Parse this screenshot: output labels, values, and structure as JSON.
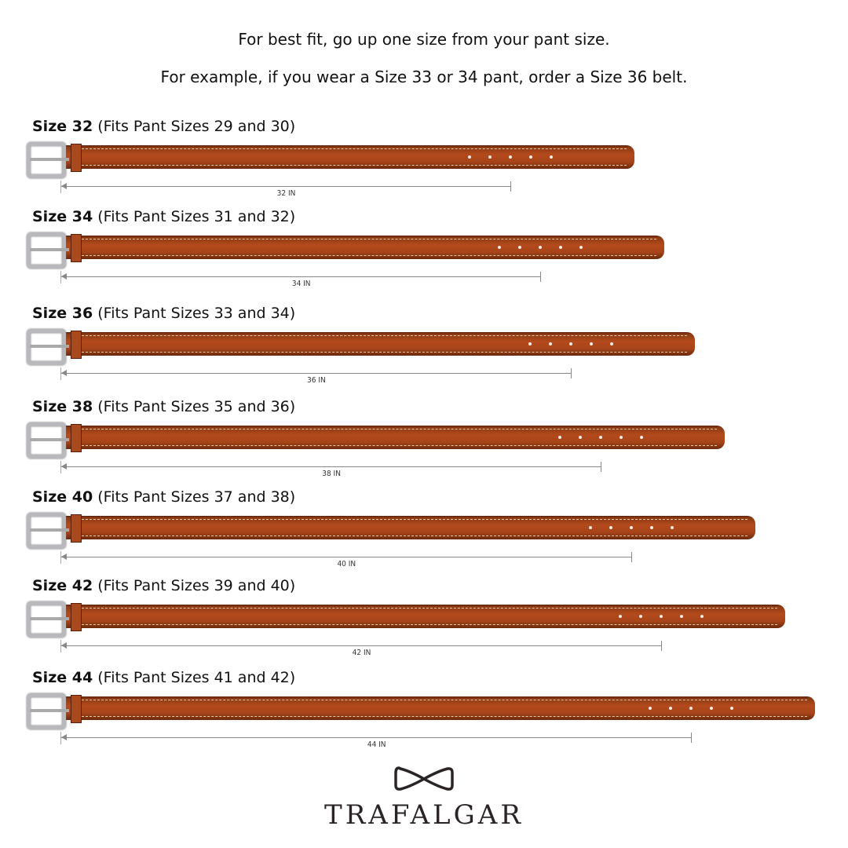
{
  "intro": {
    "line1": "For best fit, go up one size from your pant size.",
    "line2": "For example, if you wear a Size 33 or 34 pant, order a Size 36 belt."
  },
  "belts": [
    {
      "size_label": "Size 32",
      "fits": "(Fits Pant Sizes 29 and 30)",
      "measure_label": "32 IN",
      "length_in": 32
    },
    {
      "size_label": "Size 34",
      "fits": "(Fits Pant Sizes 31 and 32)",
      "measure_label": "34 IN",
      "length_in": 34
    },
    {
      "size_label": "Size 36",
      "fits": "(Fits Pant Sizes 33 and 34)",
      "measure_label": "36 IN",
      "length_in": 36
    },
    {
      "size_label": "Size 38",
      "fits": "(Fits Pant Sizes 35 and 36)",
      "measure_label": "38 IN",
      "length_in": 38
    },
    {
      "size_label": "Size 40",
      "fits": "(Fits Pant Sizes 37 and 38)",
      "measure_label": "40 IN",
      "length_in": 40
    },
    {
      "size_label": "Size 42",
      "fits": "(Fits Pant Sizes 39 and 40)",
      "measure_label": "42 IN",
      "length_in": 42
    },
    {
      "size_label": "Size 44",
      "fits": "(Fits Pant Sizes 41 and 42)",
      "measure_label": "44 IN",
      "length_in": 44
    }
  ],
  "brand": {
    "name": "TRAFALGAR",
    "icon": "bow-tie-icon"
  },
  "colors": {
    "leather": "#a8441a",
    "stitch": "#e8c9a8",
    "buckle": "#b9b9bd"
  }
}
